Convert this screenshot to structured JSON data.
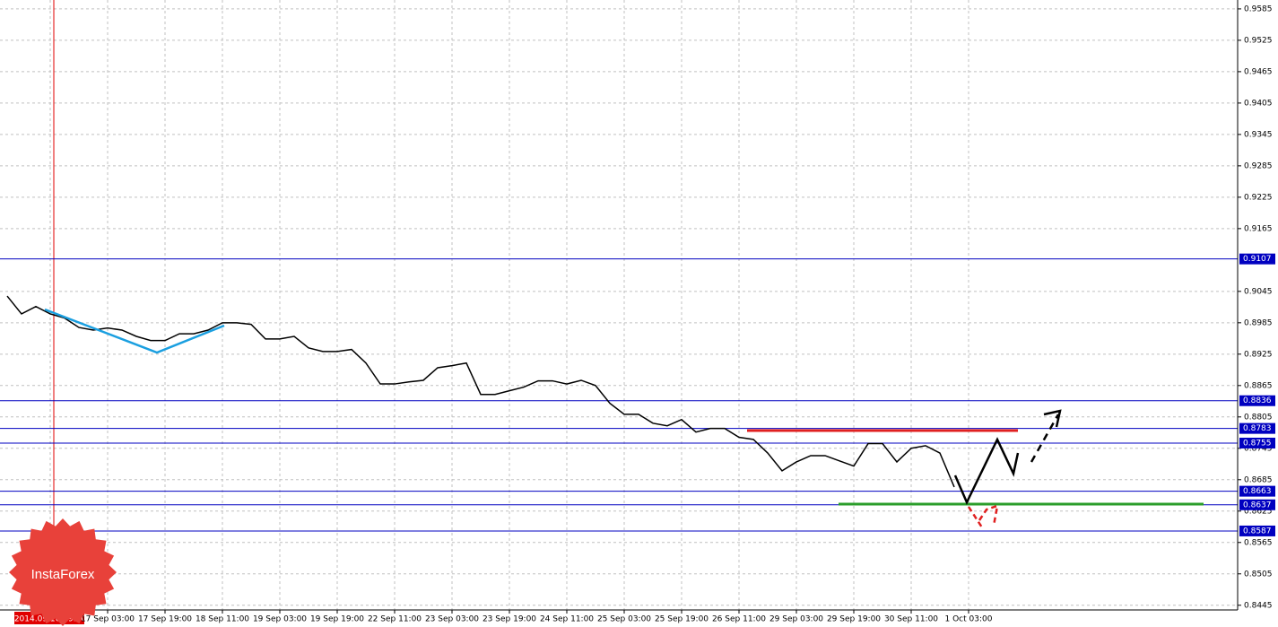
{
  "chart_data": {
    "type": "line",
    "categories": [
      null,
      null,
      null,
      "2014.09.16 19:00",
      null,
      null,
      null,
      "17 Sep 03:00",
      null,
      null,
      null,
      "17 Sep 19:00",
      null,
      null,
      null,
      "18 Sep 11:00",
      null,
      null,
      null,
      "19 Sep 03:00",
      null,
      null,
      null,
      "19 Sep 19:00",
      null,
      null,
      null,
      "22 Sep 11:00",
      null,
      null,
      null,
      "23 Sep 03:00",
      null,
      null,
      null,
      "23 Sep 19:00",
      null,
      null,
      null,
      "24 Sep 11:00",
      null,
      null,
      null,
      "25 Sep 03:00",
      null,
      null,
      null,
      "25 Sep 19:00",
      null,
      null,
      null,
      "26 Sep 11:00",
      null,
      null,
      null,
      "29 Sep 03:00",
      null,
      null,
      null,
      "29 Sep 19:00",
      null,
      null,
      null,
      "30 Sep 11:00",
      null,
      null,
      null,
      "1 Oct 03:00"
    ],
    "series": [
      {
        "color": "#000000",
        "values": [
          0.9036,
          0.9002,
          0.9016,
          0.9002,
          0.8994,
          0.8976,
          0.8971,
          0.8975,
          0.8971,
          0.8959,
          0.8951,
          0.8951,
          0.8964,
          0.8964,
          0.8971,
          0.8985,
          0.8985,
          0.8982,
          0.8954,
          0.8954,
          0.8959,
          0.8937,
          0.893,
          0.893,
          0.8934,
          0.8908,
          0.8868,
          0.8868,
          0.8872,
          0.8875,
          0.8899,
          0.8903,
          0.8908,
          0.8848,
          0.8848,
          0.8855,
          0.8862,
          0.8874,
          0.8874,
          0.8868,
          0.8875,
          0.8865,
          0.8831,
          0.881,
          0.881,
          0.8793,
          0.8788,
          0.88,
          0.8776,
          0.8783,
          0.8783,
          0.8766,
          0.8762,
          0.8736,
          0.8702,
          0.8719,
          0.8731,
          0.8731,
          0.8721,
          0.8711,
          0.8754,
          0.8754,
          0.8719,
          0.8745,
          0.875,
          0.8736,
          0.8671,
          null
        ]
      }
    ],
    "ylim": [
      0.8436,
      0.9602
    ],
    "yticks": [
      0.9585,
      0.9525,
      0.9465,
      0.9405,
      0.9345,
      0.9285,
      0.9225,
      0.9165,
      0.9045,
      0.8985,
      0.8925,
      0.8865,
      0.8805,
      0.8745,
      0.8685,
      0.8625,
      0.8565,
      0.8505,
      0.8445
    ],
    "grid": true,
    "levels": [
      0.9107,
      0.8836,
      0.8783,
      0.8755,
      0.8663,
      0.8637,
      0.8587
    ],
    "level_color": "#0000c0",
    "logo": "InstaForex"
  }
}
